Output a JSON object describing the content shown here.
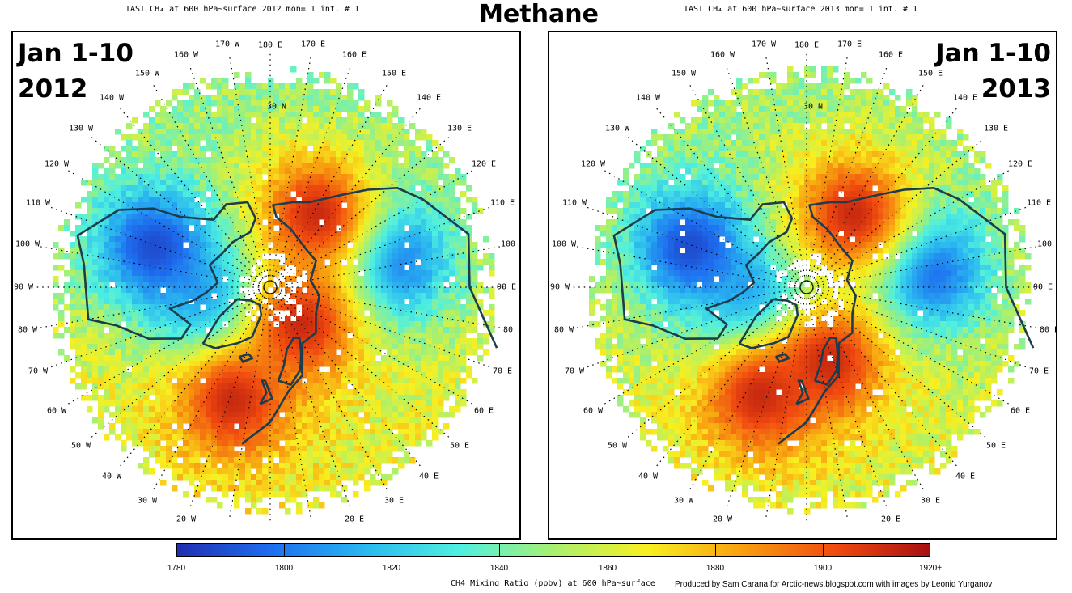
{
  "title": "Methane",
  "panels": [
    {
      "header": "IASI CH₄ at 600 hPa~surface 2012 mon=  1 int. # 1",
      "period": "Jan 1-10",
      "year": "2012",
      "features": [
        {
          "name": "west-pacific-low",
          "lon": -110,
          "lat": 47,
          "level": "low"
        },
        {
          "name": "baffin-bay-low",
          "lon": -65,
          "lat": 72,
          "level": "low"
        },
        {
          "name": "nw-pacific-low",
          "lon": 105,
          "lat": 50,
          "level": "low"
        },
        {
          "name": "siberia-high",
          "lon": 150,
          "lat": 60,
          "level": "high"
        },
        {
          "name": "barents-high",
          "lon": 40,
          "lat": 75,
          "level": "high"
        },
        {
          "name": "north-atlantic-high",
          "lon": -20,
          "lat": 50,
          "level": "high"
        }
      ]
    },
    {
      "header": "IASI CH₄ at 600 hPa~surface 2013 mon=  1 int. # 1",
      "period": "Jan 1-10",
      "year": "2013",
      "features": [
        {
          "name": "west-pacific-low",
          "lon": -110,
          "lat": 47,
          "level": "low"
        },
        {
          "name": "baffin-bay-low",
          "lon": -60,
          "lat": 72,
          "level": "low"
        },
        {
          "name": "nw-pacific-low",
          "lon": 100,
          "lat": 50,
          "level": "low"
        },
        {
          "name": "siberia-high",
          "lon": 150,
          "lat": 60,
          "level": "high"
        },
        {
          "name": "scandinavia-high",
          "lon": 15,
          "lat": 65,
          "level": "high"
        },
        {
          "name": "north-atlantic-high",
          "lon": -25,
          "lat": 50,
          "level": "high"
        }
      ]
    }
  ],
  "longitude_labels": [
    {
      "deg": 180,
      "text": "180 E"
    },
    {
      "deg": 170,
      "text": "170 E"
    },
    {
      "deg": 160,
      "text": "160 E"
    },
    {
      "deg": 150,
      "text": "150 E"
    },
    {
      "deg": 140,
      "text": "140 E"
    },
    {
      "deg": 130,
      "text": "130 E"
    },
    {
      "deg": 120,
      "text": "120 E"
    },
    {
      "deg": 110,
      "text": "110 E"
    },
    {
      "deg": 100,
      "text": "100 E"
    },
    {
      "deg": 90,
      "text": "90 E"
    },
    {
      "deg": 80,
      "text": "80 E"
    },
    {
      "deg": 70,
      "text": "70 E"
    },
    {
      "deg": 60,
      "text": "60 E"
    },
    {
      "deg": 50,
      "text": "50 E"
    },
    {
      "deg": 40,
      "text": "40 E"
    },
    {
      "deg": 30,
      "text": "30 E"
    },
    {
      "deg": 20,
      "text": "20 E"
    },
    {
      "deg": -170,
      "text": "170 W"
    },
    {
      "deg": -160,
      "text": "160 W"
    },
    {
      "deg": -150,
      "text": "150 W"
    },
    {
      "deg": -140,
      "text": "140 W"
    },
    {
      "deg": -130,
      "text": "130 W"
    },
    {
      "deg": -120,
      "text": "120 W"
    },
    {
      "deg": -110,
      "text": "110 W"
    },
    {
      "deg": -100,
      "text": "100 W"
    },
    {
      "deg": -90,
      "text": "90 W"
    },
    {
      "deg": -80,
      "text": "80 W"
    },
    {
      "deg": -70,
      "text": "70 W"
    },
    {
      "deg": -60,
      "text": "60 W"
    },
    {
      "deg": -50,
      "text": "50 W"
    },
    {
      "deg": -40,
      "text": "40 W"
    },
    {
      "deg": -30,
      "text": "30 W"
    },
    {
      "deg": -20,
      "text": "20 W"
    }
  ],
  "latitude_label": {
    "text": "30 N",
    "lat": 30
  },
  "colorbar": {
    "min": 1780,
    "max": 1920,
    "ticks": [
      {
        "value": 1780,
        "label": "1780"
      },
      {
        "value": 1800,
        "label": "1800"
      },
      {
        "value": 1820,
        "label": "1820"
      },
      {
        "value": 1840,
        "label": "1840"
      },
      {
        "value": 1860,
        "label": "1860"
      },
      {
        "value": 1880,
        "label": "1880"
      },
      {
        "value": 1900,
        "label": "1900"
      },
      {
        "value": 1920,
        "label": "1920+"
      }
    ],
    "stops": [
      "#1f2fb0",
      "#1e6ef0",
      "#2ab8f0",
      "#4ff0e0",
      "#a8f070",
      "#f8f020",
      "#f8a010",
      "#f04a10",
      "#a81010"
    ],
    "title": "CH4 Mixing Ratio (ppbv) at 600 hPa~surface"
  },
  "credit": "Produced by Sam Carana for Arctic-news.blogspot.com with images by Leonid Yurganov"
}
